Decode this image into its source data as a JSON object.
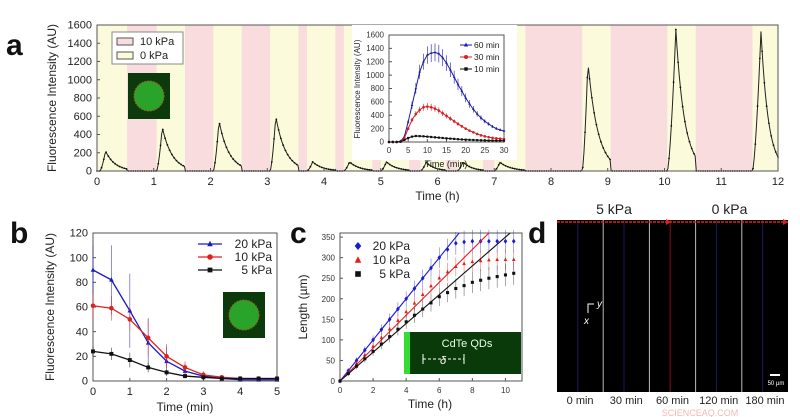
{
  "panel_labels": [
    "a",
    "b",
    "c",
    "d"
  ],
  "watermark": "SCIENCEAQ.COM",
  "chart_data": [
    {
      "id": "a",
      "type": "line",
      "xlabel": "Time (h)",
      "ylabel": "Fluorescence Intensity (AU)",
      "xlim": [
        0,
        12
      ],
      "ylim": [
        0,
        1600
      ],
      "xticks": [
        0,
        1,
        2,
        3,
        4,
        5,
        6,
        7,
        8,
        9,
        10,
        11,
        12
      ],
      "yticks": [
        0,
        200,
        400,
        600,
        800,
        1000,
        1200,
        1400,
        1600
      ],
      "legend": [
        {
          "label": "10 kPa",
          "color": "#f9dcdd"
        },
        {
          "label": "0 kPa",
          "color": "#fbfbdc"
        }
      ],
      "legend_position": "top-left",
      "pressure_10kPa_intervals_h": [
        [
          0.53,
          1.05
        ],
        [
          1.55,
          2.05
        ],
        [
          2.55,
          3.05
        ],
        [
          3.55,
          3.7
        ],
        [
          4.2,
          4.35
        ],
        [
          4.85,
          5.0
        ],
        [
          5.5,
          5.7
        ],
        [
          6.15,
          6.35
        ],
        [
          6.8,
          7.0
        ],
        [
          7.55,
          8.55
        ],
        [
          9.05,
          10.05
        ],
        [
          10.55,
          11.55
        ]
      ],
      "pulses": [
        {
          "start": 0.05,
          "peak_time": 0.15,
          "peak": 220,
          "end": 0.53
        },
        {
          "start": 1.05,
          "peak_time": 1.15,
          "peak": 480,
          "end": 1.55
        },
        {
          "start": 2.05,
          "peak_time": 2.15,
          "peak": 550,
          "end": 2.55
        },
        {
          "start": 3.05,
          "peak_time": 3.15,
          "peak": 600,
          "end": 3.55
        },
        {
          "start": 3.7,
          "peak_time": 3.8,
          "peak": 100,
          "end": 4.2
        },
        {
          "start": 4.35,
          "peak_time": 4.45,
          "peak": 100,
          "end": 4.85
        },
        {
          "start": 5.0,
          "peak_time": 5.1,
          "peak": 100,
          "end": 5.5
        },
        {
          "start": 5.7,
          "peak_time": 5.8,
          "peak": 95,
          "end": 6.15
        },
        {
          "start": 6.35,
          "peak_time": 6.45,
          "peak": 100,
          "end": 6.8
        },
        {
          "start": 7.0,
          "peak_time": 7.1,
          "peak": 95,
          "end": 7.55
        },
        {
          "start": 8.55,
          "peak_time": 8.65,
          "peak": 1200,
          "end": 9.05
        },
        {
          "start": 10.05,
          "peak_time": 10.2,
          "peak": 1550,
          "end": 10.55
        },
        {
          "start": 11.55,
          "peak_time": 11.7,
          "peak": 1530,
          "end": 12.0
        }
      ],
      "inset": {
        "type": "line",
        "xlabel": "Time (min)",
        "ylabel": "Fluorescence Intensity (AU)",
        "xlim": [
          0,
          30
        ],
        "ylim": [
          0,
          1600
        ],
        "xticks": [
          0,
          5,
          10,
          15,
          20,
          25,
          30
        ],
        "yticks": [
          0,
          200,
          400,
          600,
          800,
          1000,
          1200,
          1400,
          1600
        ],
        "legend_position": "top-right",
        "x": [
          0,
          1,
          2,
          3,
          4,
          5,
          6,
          7,
          8,
          9,
          10,
          11,
          12,
          13,
          14,
          15,
          16,
          17,
          18,
          19,
          20,
          21,
          22,
          23,
          24,
          25,
          26,
          27,
          28,
          29,
          30
        ],
        "series": [
          {
            "name": "60 min",
            "color": "#1a1aa8",
            "marker": "triangle",
            "values": [
              0,
              0,
              0,
              10,
              80,
              300,
              550,
              800,
              1050,
              1200,
              1300,
              1330,
              1340,
              1320,
              1260,
              1180,
              1080,
              970,
              860,
              760,
              660,
              570,
              490,
              420,
              360,
              310,
              270,
              230,
              200,
              180,
              165
            ]
          },
          {
            "name": "30 min",
            "color": "#d42020",
            "marker": "star",
            "values": [
              0,
              0,
              0,
              5,
              60,
              200,
              330,
              420,
              480,
              520,
              530,
              520,
              500,
              470,
              430,
              390,
              350,
              310,
              270,
              235,
              200,
              170,
              145,
              120,
              100,
              85,
              72,
              62,
              55,
              50,
              45
            ]
          },
          {
            "name": "10 min",
            "color": "#111111",
            "marker": "square",
            "values": [
              0,
              0,
              0,
              5,
              30,
              60,
              80,
              90,
              88,
              85,
              80,
              75,
              70,
              65,
              60,
              55,
              50,
              46,
              42,
              38,
              35,
              32,
              30,
              28,
              26,
              24,
              22,
              21,
              20,
              20,
              20
            ]
          }
        ]
      }
    },
    {
      "id": "b",
      "type": "line",
      "xlabel": "Time (min)",
      "ylabel": "Fluorescence Intensity (AU)",
      "xlim": [
        0,
        5
      ],
      "ylim": [
        0,
        120
      ],
      "xticks": [
        0,
        1,
        2,
        3,
        4,
        5
      ],
      "yticks": [
        0,
        20,
        40,
        60,
        80,
        100,
        120
      ],
      "legend_position": "top-right",
      "x": [
        0,
        0.5,
        1,
        1.5,
        2,
        2.5,
        3,
        3.5,
        4,
        4.5,
        5
      ],
      "series": [
        {
          "name": "20 kPa",
          "color": "#1a1ac0",
          "marker": "triangle",
          "values": [
            90,
            82,
            57,
            31,
            16,
            8,
            4,
            2,
            1,
            1,
            1
          ],
          "errors": [
            20,
            28,
            30,
            20,
            12,
            6,
            3,
            2,
            1,
            1,
            1
          ]
        },
        {
          "name": "10 kPa",
          "color": "#e02020",
          "marker": "circle",
          "values": [
            61,
            59,
            50,
            35,
            20,
            11,
            5,
            3,
            2,
            2,
            2
          ],
          "errors": [
            10,
            10,
            9,
            15,
            10,
            5,
            3,
            2,
            1,
            1,
            1
          ]
        },
        {
          "name": "5 kPa",
          "color": "#111111",
          "marker": "square",
          "values": [
            24,
            22,
            17,
            11,
            7,
            4,
            3,
            2,
            2,
            2,
            2
          ],
          "errors": [
            4,
            5,
            6,
            4,
            2,
            1,
            1,
            1,
            1,
            1,
            1
          ]
        }
      ]
    },
    {
      "id": "c",
      "type": "scatter",
      "xlabel": "Time (h)",
      "ylabel": "Length (µm)",
      "xlim": [
        0,
        11
      ],
      "ylim": [
        0,
        360
      ],
      "xticks": [
        0,
        2,
        4,
        6,
        8,
        10
      ],
      "yticks": [
        0,
        50,
        100,
        150,
        200,
        250,
        300,
        350
      ],
      "legend_position": "top-left",
      "x": [
        0,
        0.5,
        1,
        1.5,
        2,
        2.5,
        3,
        3.5,
        4,
        4.5,
        5,
        5.5,
        6,
        6.5,
        7,
        7.5,
        8,
        8.5,
        9,
        9.5,
        10,
        10.5
      ],
      "series": [
        {
          "name": "20 kPa",
          "color": "#1a1ad0",
          "marker": "diamond",
          "fit_slope": 50,
          "values": [
            0,
            25,
            50,
            75,
            100,
            125,
            150,
            175,
            200,
            225,
            250,
            275,
            300,
            320,
            335,
            338,
            340,
            340,
            340,
            340,
            340,
            340
          ]
        },
        {
          "name": "10 kPa",
          "color": "#e02020",
          "marker": "triangle",
          "fit_slope": 40,
          "values": [
            0,
            21,
            42,
            63,
            84,
            105,
            126,
            147,
            168,
            189,
            210,
            231,
            250,
            265,
            278,
            285,
            290,
            292,
            294,
            295,
            295,
            295
          ]
        },
        {
          "name": "5 kPa",
          "color": "#111111",
          "marker": "square",
          "fit_slope": 35,
          "values": [
            0,
            18,
            36,
            54,
            72,
            90,
            108,
            126,
            144,
            160,
            175,
            190,
            205,
            215,
            225,
            232,
            240,
            245,
            250,
            254,
            258,
            262
          ]
        }
      ],
      "inset_label": "CdTe QDs",
      "inset_symbol": "δ"
    },
    {
      "id": "d",
      "type": "image",
      "pressure_labels": [
        "5 kPa",
        "0 kPa"
      ],
      "axis_labels": [
        "y",
        "x"
      ],
      "scale_bar": "50 µm",
      "frames": [
        "0 min",
        "30 min",
        "60 min",
        "120 min",
        "180 min"
      ]
    }
  ]
}
